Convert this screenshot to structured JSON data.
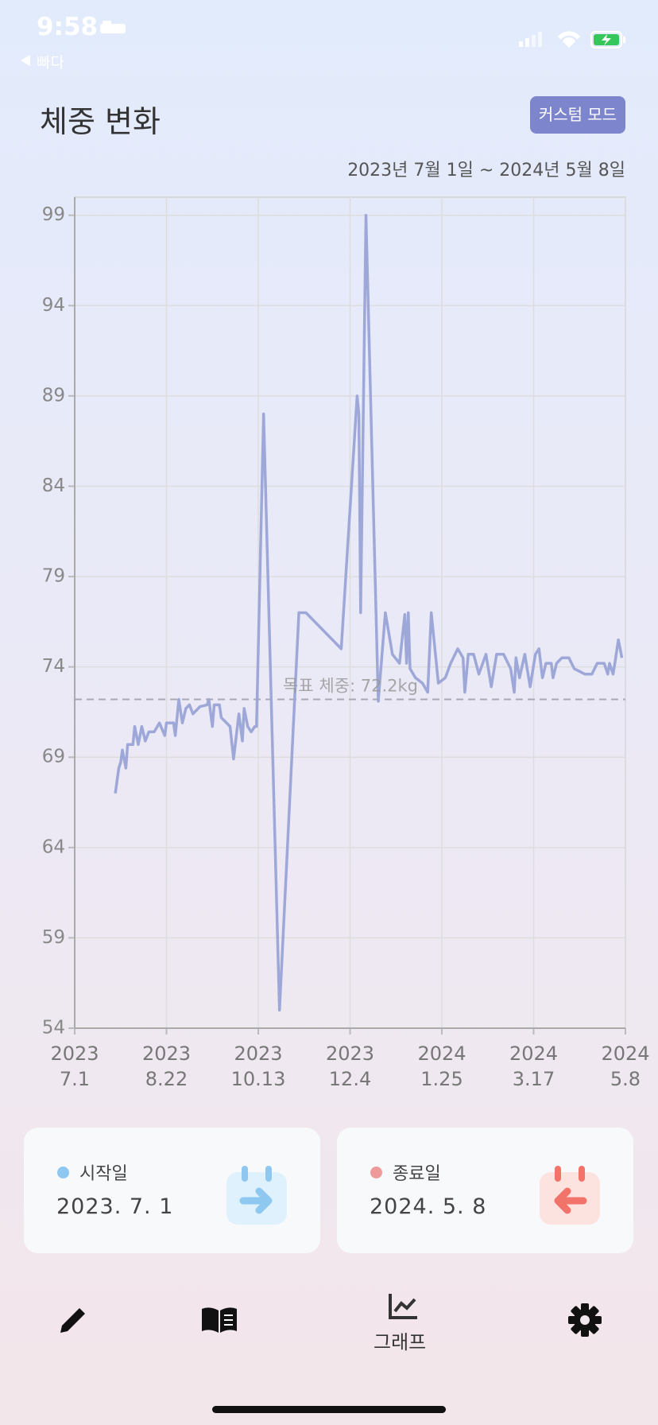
{
  "status_bar": {
    "time": "9:58",
    "back": "빠다"
  },
  "header": {
    "title": "체중 변화",
    "button": "커스텀 모드",
    "range": "2023년 7월 1일 ~ 2024년 5월 8일"
  },
  "chart_data": {
    "type": "line",
    "color": "#9ea8d8",
    "grid": true,
    "x": [
      "2023-07-24",
      "2023-07-26",
      "2023-07-27",
      "2023-07-28",
      "2023-07-30",
      "2023-07-31",
      "2023-08-03",
      "2023-08-04",
      "2023-08-06",
      "2023-08-08",
      "2023-08-10",
      "2023-08-12",
      "2023-08-15",
      "2023-08-18",
      "2023-08-21",
      "2023-08-22",
      "2023-08-26",
      "2023-08-27",
      "2023-08-29",
      "2023-08-31",
      "2023-09-02",
      "2023-09-04",
      "2023-09-06",
      "2023-09-10",
      "2023-09-14",
      "2023-09-15",
      "2023-09-17",
      "2023-09-18",
      "2023-09-21",
      "2023-09-22",
      "2023-09-27",
      "2023-09-29",
      "2023-10-02",
      "2023-10-04",
      "2023-10-05",
      "2023-10-07",
      "2023-10-09",
      "2023-10-11",
      "2023-10-12",
      "2023-10-16",
      "2023-10-25",
      "2023-11-05",
      "2023-11-09",
      "2023-11-29",
      "2023-12-08",
      "2023-12-09",
      "2023-12-10",
      "2023-12-13",
      "2023-12-20",
      "2023-12-24",
      "2023-12-28",
      "2024-01-01",
      "2024-01-04",
      "2024-01-05",
      "2024-01-06",
      "2024-01-07",
      "2024-01-10",
      "2024-01-14",
      "2024-01-17",
      "2024-01-19",
      "2024-01-23",
      "2024-01-27",
      "2024-01-30",
      "2024-02-03",
      "2024-02-06",
      "2024-02-07",
      "2024-02-09",
      "2024-02-12",
      "2024-02-15",
      "2024-02-19",
      "2024-02-22",
      "2024-02-25",
      "2024-02-29",
      "2024-03-04",
      "2024-03-06",
      "2024-03-07",
      "2024-03-09",
      "2024-03-12",
      "2024-03-15",
      "2024-03-18",
      "2024-03-20",
      "2024-03-22",
      "2024-03-24",
      "2024-03-27",
      "2024-03-28",
      "2024-03-30",
      "2024-04-02",
      "2024-04-06",
      "2024-04-09",
      "2024-04-15",
      "2024-04-19",
      "2024-04-22",
      "2024-04-26",
      "2024-04-28",
      "2024-04-29",
      "2024-05-01",
      "2024-05-02",
      "2024-05-04",
      "2024-05-06"
    ],
    "values": [
      67.0,
      68.4,
      68.7,
      69.4,
      68.4,
      69.7,
      69.7,
      70.7,
      69.7,
      70.7,
      69.9,
      70.4,
      70.4,
      70.9,
      70.2,
      70.9,
      70.9,
      70.2,
      72.2,
      70.9,
      71.7,
      71.9,
      71.4,
      71.8,
      71.9,
      72.2,
      70.7,
      71.9,
      71.9,
      71.2,
      70.7,
      68.9,
      71.4,
      69.9,
      71.7,
      70.7,
      70.4,
      70.7,
      70.7,
      88.0,
      55.0,
      77.0,
      77.0,
      75.0,
      89.0,
      88.0,
      77.0,
      99.0,
      72.1,
      77.0,
      74.7,
      74.2,
      76.9,
      74.2,
      77.0,
      73.9,
      73.4,
      73.1,
      72.6,
      77.0,
      73.1,
      73.4,
      74.2,
      75.0,
      74.5,
      72.6,
      74.7,
      74.7,
      73.6,
      74.7,
      72.9,
      74.7,
      74.7,
      73.9,
      72.6,
      74.5,
      73.4,
      74.7,
      72.9,
      74.7,
      75.0,
      73.4,
      74.2,
      74.2,
      73.4,
      74.2,
      74.5,
      74.5,
      73.9,
      73.6,
      73.6,
      74.2,
      74.2,
      73.6,
      74.2,
      73.6,
      74.2,
      75.5,
      74.5
    ],
    "xlim": [
      "2023-07-01",
      "2024-05-08"
    ],
    "xticks": [
      {
        "value": "2023-07-01",
        "label": [
          "2023",
          "7.1"
        ]
      },
      {
        "value": "2023-08-22",
        "label": [
          "2023",
          "8.22"
        ]
      },
      {
        "value": "2023-10-13",
        "label": [
          "2023",
          "10.13"
        ]
      },
      {
        "value": "2023-12-04",
        "label": [
          "2023",
          "12.4"
        ]
      },
      {
        "value": "2024-01-25",
        "label": [
          "2024",
          "1.25"
        ]
      },
      {
        "value": "2024-03-17",
        "label": [
          "2024",
          "3.17"
        ]
      },
      {
        "value": "2024-05-08",
        "label": [
          "2024",
          "5.8"
        ]
      }
    ],
    "ylim": [
      54,
      100
    ],
    "yticks": [
      54,
      59,
      64,
      69,
      74,
      79,
      84,
      89,
      94,
      99
    ],
    "goal": {
      "value": 72.2,
      "label": "목표 체중: 72.2kg"
    }
  },
  "cards": [
    {
      "label": "시작일",
      "date": "2023. 7. 1"
    },
    {
      "label": "종료일",
      "date": "2024. 5. 8"
    }
  ],
  "nav": {
    "active_label": "그래프"
  }
}
